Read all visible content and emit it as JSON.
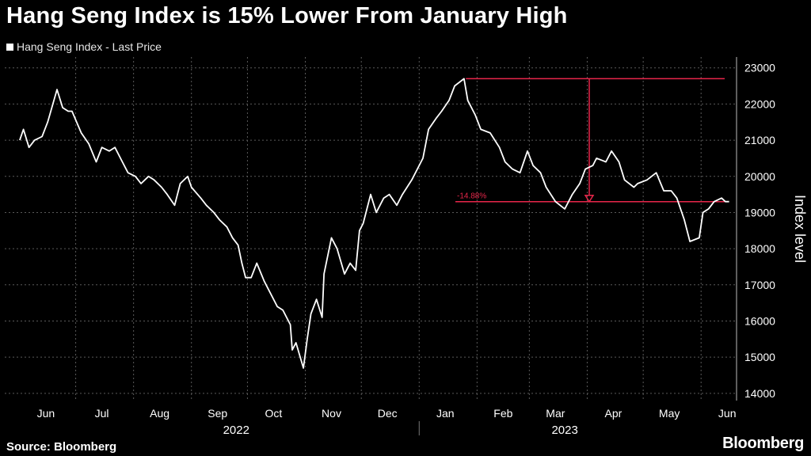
{
  "title": "Hang Seng Index is 15% Lower From January High",
  "legend_label": "Hang Seng Index - Last Price",
  "source": "Source: Bloomberg",
  "brand": "Bloomberg",
  "colors": {
    "background": "#000000",
    "line": "#ffffff",
    "annotation": "#e8264a",
    "grid": "#5a5a5a"
  },
  "chart_data": {
    "type": "line",
    "title": "Hang Seng Index is 15% Lower From January High",
    "ylabel": "Index level",
    "ylim": [
      13800,
      23300
    ],
    "yticks": [
      14000,
      15000,
      16000,
      17000,
      18000,
      19000,
      20000,
      21000,
      22000,
      23000
    ],
    "grid": true,
    "y_axis_side": "right",
    "month_labels": [
      "Jun",
      "Jul",
      "Aug",
      "Sep",
      "Oct",
      "Nov",
      "Dec",
      "Jan",
      "Feb",
      "Mar",
      "Apr",
      "May",
      "Jun"
    ],
    "year_labels": [
      "2022",
      "2023"
    ],
    "series": [
      {
        "name": "Hang Seng Index - Last Price",
        "color": "#ffffff",
        "x": [
          "2022-06-01",
          "2022-06-03",
          "2022-06-06",
          "2022-06-09",
          "2022-06-13",
          "2022-06-16",
          "2022-06-21",
          "2022-06-24",
          "2022-06-27",
          "2022-06-29",
          "2022-07-04",
          "2022-07-08",
          "2022-07-12",
          "2022-07-15",
          "2022-07-19",
          "2022-07-22",
          "2022-07-26",
          "2022-07-28",
          "2022-07-29",
          "2022-08-02",
          "2022-08-05",
          "2022-08-09",
          "2022-08-12",
          "2022-08-16",
          "2022-08-19",
          "2022-08-23",
          "2022-08-26",
          "2022-08-30",
          "2022-09-01",
          "2022-09-06",
          "2022-09-09",
          "2022-09-13",
          "2022-09-16",
          "2022-09-20",
          "2022-09-23",
          "2022-09-26",
          "2022-09-28",
          "2022-09-30",
          "2022-10-03",
          "2022-10-06",
          "2022-10-10",
          "2022-10-13",
          "2022-10-17",
          "2022-10-20",
          "2022-10-24",
          "2022-10-25",
          "2022-10-27",
          "2022-10-31",
          "2022-11-02",
          "2022-11-04",
          "2022-11-07",
          "2022-11-10",
          "2022-11-11",
          "2022-11-15",
          "2022-11-18",
          "2022-11-22",
          "2022-11-25",
          "2022-11-28",
          "2022-11-30",
          "2022-12-02",
          "2022-12-06",
          "2022-12-09",
          "2022-12-13",
          "2022-12-16",
          "2022-12-20",
          "2022-12-23",
          "2022-12-28",
          "2023-01-03",
          "2023-01-06",
          "2023-01-10",
          "2023-01-13",
          "2023-01-17",
          "2023-01-20",
          "2023-01-25",
          "2023-01-27",
          "2023-01-31",
          "2023-02-03",
          "2023-02-08",
          "2023-02-13",
          "2023-02-16",
          "2023-02-20",
          "2023-02-24",
          "2023-02-28",
          "2023-03-03",
          "2023-03-07",
          "2023-03-10",
          "2023-03-15",
          "2023-03-20",
          "2023-03-24",
          "2023-03-28",
          "2023-03-31",
          "2023-04-04",
          "2023-04-06",
          "2023-04-11",
          "2023-04-14",
          "2023-04-18",
          "2023-04-21",
          "2023-04-26",
          "2023-04-28",
          "2023-05-03",
          "2023-05-08",
          "2023-05-12",
          "2023-05-16",
          "2023-05-19",
          "2023-05-23",
          "2023-05-26",
          "2023-05-31",
          "2023-06-02",
          "2023-06-05",
          "2023-06-08",
          "2023-06-12",
          "2023-06-14",
          "2023-06-16"
        ],
        "values": [
          21000,
          21300,
          20800,
          21000,
          21100,
          21500,
          22400,
          21900,
          21800,
          21800,
          21200,
          20900,
          20400,
          20800,
          20700,
          20800,
          20400,
          20200,
          20100,
          20000,
          19800,
          20000,
          19900,
          19700,
          19500,
          19200,
          19800,
          20000,
          19700,
          19400,
          19200,
          19000,
          18800,
          18600,
          18300,
          18100,
          17600,
          17200,
          17200,
          17600,
          17100,
          16800,
          16400,
          16300,
          15900,
          15200,
          15400,
          14700,
          15500,
          16200,
          16600,
          16100,
          17300,
          18300,
          18000,
          17300,
          17600,
          17400,
          18500,
          18700,
          19500,
          19000,
          19400,
          19500,
          19200,
          19500,
          19900,
          20500,
          21300,
          21600,
          21800,
          22100,
          22500,
          22700,
          22100,
          21700,
          21300,
          21200,
          20800,
          20400,
          20200,
          20100,
          20700,
          20300,
          20100,
          19700,
          19300,
          19100,
          19500,
          19800,
          20200,
          20300,
          20500,
          20400,
          20700,
          20400,
          19900,
          19700,
          19800,
          19900,
          20100,
          19600,
          19600,
          19400,
          18800,
          18200,
          18300,
          19000,
          19100,
          19300,
          19400,
          19300,
          19300
        ]
      }
    ],
    "annotations": {
      "high_line_value": 22700,
      "low_line_value": 19300,
      "change_label": "-14.88%"
    }
  }
}
